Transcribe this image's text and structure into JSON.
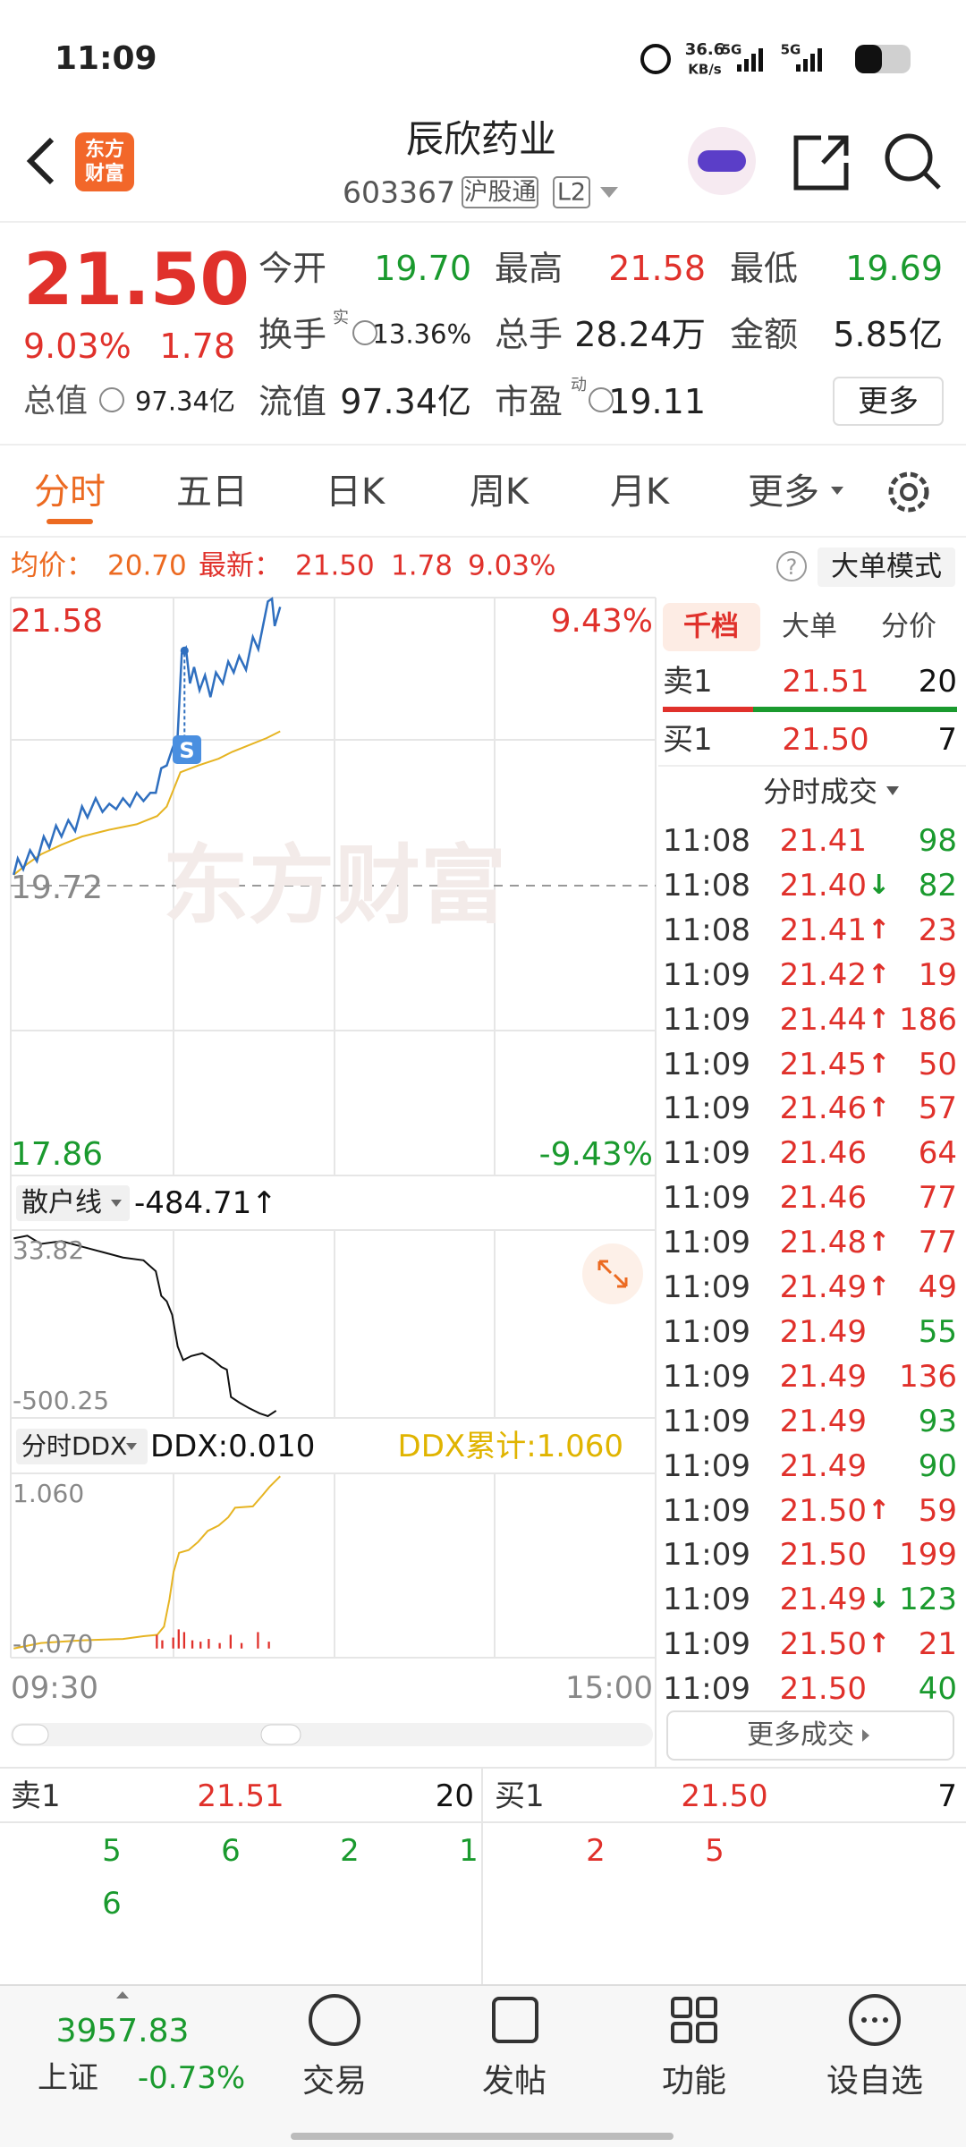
{
  "status_bar": {
    "time": "11:09",
    "net_speed": "36.6",
    "net_unit": "KB/s",
    "sim_1": "5G",
    "sim_2": "5G"
  },
  "header": {
    "logo": [
      "东方",
      "财富"
    ],
    "name": "辰欣药业",
    "code": "603367",
    "market_tag": "沪股通",
    "level_tag": "L2"
  },
  "quote": {
    "price": "21.50",
    "change_pct": "9.03%",
    "change": "1.78",
    "open": {
      "label": "今开",
      "value": "19.70"
    },
    "high": {
      "label": "最高",
      "value": "21.58"
    },
    "low": {
      "label": "最低",
      "value": "19.69"
    },
    "turnover": {
      "label": "换手",
      "note": "实",
      "value": "13.36%"
    },
    "volume": {
      "label": "总手",
      "value": "28.24万"
    },
    "amount": {
      "label": "金额",
      "value": "5.85亿"
    },
    "market_cap": {
      "label": "总值",
      "value": "97.34亿"
    },
    "float_cap": {
      "label": "流值",
      "value": "97.34亿"
    },
    "pe": {
      "label": "市盈",
      "note": "动",
      "value": "19.11"
    },
    "more": "更多"
  },
  "tabs": [
    "分时",
    "五日",
    "日K",
    "周K",
    "月K",
    "更多"
  ],
  "info_bar": {
    "avg_label": "均价：",
    "avg": "20.70",
    "last_label": "最新：",
    "last": "21.50",
    "change": "1.78",
    "change_pct": "9.03%",
    "help": "?",
    "mode": "大单模式"
  },
  "price_chart": {
    "high": "21.58",
    "high_pct": "9.43%",
    "base": "19.72",
    "low": "17.86",
    "low_pct": "-9.43%",
    "watermark": "东方财富",
    "marker": "S"
  },
  "indicator_1": {
    "name": "散户线",
    "value": "-484.71↑",
    "max": "33.82",
    "min": "-500.25"
  },
  "indicator_2": {
    "name": "分时DDX",
    "ddx": "DDX:0.010",
    "ddx_cum": "DDX累计:1.060",
    "max": "1.060",
    "min": "-0.070"
  },
  "time_axis": [
    "09:30",
    "15:00"
  ],
  "depth_panel": {
    "tabs": [
      "千档",
      "大单",
      "分价"
    ],
    "sell_1": {
      "label": "卖1",
      "price": "21.51",
      "volume": "20"
    },
    "buy_1": {
      "label": "买1",
      "price": "21.50",
      "volume": "7"
    },
    "trades_title": "分时成交",
    "trades": [
      {
        "time": "11:08",
        "price": "21.41",
        "volume": "98",
        "color": "#1a9a2e"
      },
      {
        "time": "11:08",
        "price": "21.40",
        "arrow": "↓",
        "volume": "82",
        "color": "#1a9a2e"
      },
      {
        "time": "11:08",
        "price": "21.41",
        "arrow": "↑",
        "volume": "23",
        "color": "#e0312b"
      },
      {
        "time": "11:09",
        "price": "21.42",
        "arrow": "↑",
        "volume": "19",
        "color": "#e0312b"
      },
      {
        "time": "11:09",
        "price": "21.44",
        "arrow": "↑",
        "volume": "186",
        "color": "#e0312b"
      },
      {
        "time": "11:09",
        "price": "21.45",
        "arrow": "↑",
        "volume": "50",
        "color": "#e0312b"
      },
      {
        "time": "11:09",
        "price": "21.46",
        "arrow": "↑",
        "volume": "57",
        "color": "#e0312b"
      },
      {
        "time": "11:09",
        "price": "21.46",
        "volume": "64",
        "color": "#e0312b"
      },
      {
        "time": "11:09",
        "price": "21.46",
        "volume": "77",
        "color": "#e0312b"
      },
      {
        "time": "11:09",
        "price": "21.48",
        "arrow": "↑",
        "volume": "77",
        "color": "#e0312b"
      },
      {
        "time": "11:09",
        "price": "21.49",
        "arrow": "↑",
        "volume": "49",
        "color": "#e0312b"
      },
      {
        "time": "11:09",
        "price": "21.49",
        "volume": "55",
        "color": "#1a9a2e"
      },
      {
        "time": "11:09",
        "price": "21.49",
        "volume": "136",
        "color": "#e0312b"
      },
      {
        "time": "11:09",
        "price": "21.49",
        "volume": "93",
        "color": "#1a9a2e"
      },
      {
        "time": "11:09",
        "price": "21.49",
        "volume": "90",
        "color": "#1a9a2e"
      },
      {
        "time": "11:09",
        "price": "21.50",
        "arrow": "↑",
        "volume": "59",
        "color": "#e0312b"
      },
      {
        "time": "11:09",
        "price": "21.50",
        "volume": "199",
        "color": "#e0312b"
      },
      {
        "time": "11:09",
        "price": "21.49",
        "arrow": "↓",
        "volume": "123",
        "color": "#1a9a2e"
      },
      {
        "time": "11:09",
        "price": "21.50",
        "arrow": "↑",
        "volume": "21",
        "color": "#e0312b"
      },
      {
        "time": "11:09",
        "price": "21.50",
        "volume": "40",
        "color": "#1a9a2e"
      }
    ],
    "more_trades": "更多成交"
  },
  "order_book": {
    "sell": {
      "label": "卖1",
      "price": "21.51",
      "volume": "20",
      "orders": [
        "5",
        "6",
        "2",
        "1",
        "6"
      ]
    },
    "buy": {
      "label": "买1",
      "price": "21.50",
      "volume": "7",
      "orders": [
        "2",
        "5"
      ]
    }
  },
  "footer": {
    "index_value": "3957.83",
    "index_name": "上证",
    "index_change": "-0.73%",
    "nav": [
      "交易",
      "发帖",
      "功能",
      "设自选"
    ]
  }
}
